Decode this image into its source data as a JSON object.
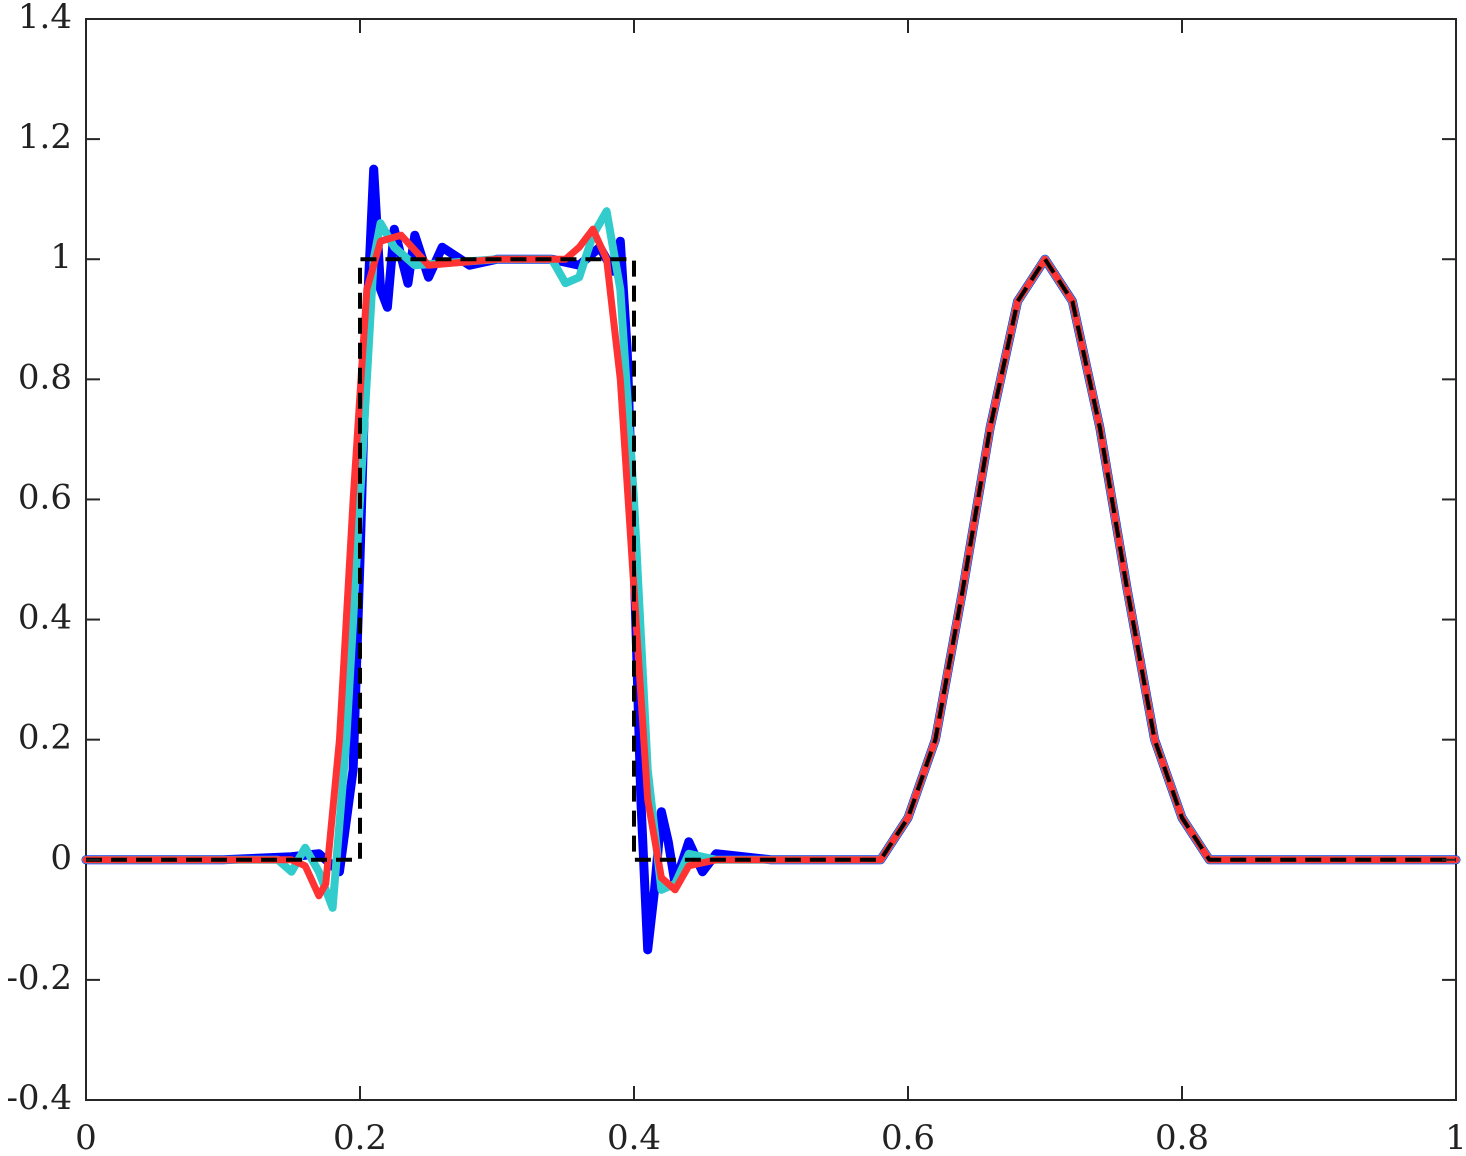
{
  "chart_data": {
    "type": "line",
    "xlim": [
      0,
      1
    ],
    "ylim": [
      -0.4,
      1.4
    ],
    "xticks": [
      0,
      0.2,
      0.4,
      0.6,
      0.8,
      1
    ],
    "yticks": [
      -0.4,
      -0.2,
      0,
      0.2,
      0.4,
      0.6,
      0.8,
      1,
      1.2,
      1.4
    ],
    "series": [
      {
        "color": "#0000ff",
        "width": 9,
        "dashed": false,
        "x": [
          0,
          0.1,
          0.15,
          0.17,
          0.185,
          0.195,
          0.2,
          0.205,
          0.21,
          0.215,
          0.22,
          0.225,
          0.235,
          0.24,
          0.25,
          0.26,
          0.28,
          0.3,
          0.34,
          0.36,
          0.375,
          0.385,
          0.39,
          0.395,
          0.4,
          0.405,
          0.41,
          0.415,
          0.42,
          0.425,
          0.43,
          0.44,
          0.45,
          0.46,
          0.5,
          0.58,
          0.6,
          0.62,
          0.64,
          0.66,
          0.68,
          0.7,
          0.72,
          0.74,
          0.76,
          0.78,
          0.8,
          0.82,
          1
        ],
        "values": [
          0,
          0,
          0.005,
          0.01,
          -0.02,
          0.15,
          0.5,
          0.9,
          1.15,
          0.95,
          0.92,
          1.05,
          0.96,
          1.04,
          0.97,
          1.02,
          0.99,
          1,
          1,
          0.99,
          1.02,
          0.98,
          1.03,
          0.85,
          0.5,
          0.1,
          -0.15,
          -0.05,
          0.08,
          0.03,
          -0.04,
          0.03,
          -0.02,
          0.01,
          0,
          0,
          0.07,
          0.2,
          0.45,
          0.72,
          0.93,
          1,
          0.93,
          0.72,
          0.45,
          0.2,
          0.07,
          0,
          0
        ]
      },
      {
        "color": "#33cccc",
        "width": 8,
        "dashed": false,
        "x": [
          0,
          0.14,
          0.15,
          0.16,
          0.17,
          0.18,
          0.19,
          0.2,
          0.21,
          0.215,
          0.225,
          0.24,
          0.3,
          0.34,
          0.35,
          0.36,
          0.37,
          0.38,
          0.39,
          0.4,
          0.41,
          0.42,
          0.43,
          0.44,
          0.46,
          0.58,
          0.6,
          0.62,
          0.64,
          0.66,
          0.68,
          0.7,
          0.72,
          0.74,
          0.76,
          0.78,
          0.8,
          0.82,
          1
        ],
        "values": [
          0,
          0,
          -0.02,
          0.02,
          -0.02,
          -0.08,
          0.2,
          0.6,
          1,
          1.06,
          1.02,
          0.99,
          1,
          1,
          0.96,
          0.97,
          1.04,
          1.08,
          0.95,
          0.6,
          0.15,
          -0.05,
          -0.04,
          0.01,
          0,
          0,
          0.07,
          0.2,
          0.45,
          0.72,
          0.93,
          1,
          0.93,
          0.72,
          0.45,
          0.2,
          0.07,
          0,
          0
        ]
      },
      {
        "color": "#ff3333",
        "width": 7,
        "dashed": false,
        "x": [
          0,
          0.15,
          0.16,
          0.17,
          0.175,
          0.185,
          0.195,
          0.205,
          0.215,
          0.23,
          0.25,
          0.3,
          0.35,
          0.36,
          0.37,
          0.38,
          0.39,
          0.4,
          0.41,
          0.42,
          0.43,
          0.44,
          0.46,
          0.58,
          0.6,
          0.62,
          0.64,
          0.66,
          0.68,
          0.7,
          0.72,
          0.74,
          0.76,
          0.78,
          0.8,
          0.82,
          1
        ],
        "values": [
          0,
          0,
          -0.01,
          -0.06,
          -0.04,
          0.2,
          0.6,
          0.95,
          1.03,
          1.04,
          0.99,
          1,
          1,
          1.02,
          1.05,
          1,
          0.8,
          0.45,
          0.1,
          -0.03,
          -0.05,
          -0.01,
          0,
          0,
          0.07,
          0.2,
          0.45,
          0.72,
          0.93,
          1,
          0.93,
          0.72,
          0.45,
          0.2,
          0.07,
          0,
          0
        ]
      },
      {
        "color": "#000000",
        "width": 4,
        "dashed": true,
        "x": [
          0,
          0.2,
          0.2,
          0.4,
          0.4,
          0.58,
          0.6,
          0.62,
          0.64,
          0.66,
          0.68,
          0.7,
          0.72,
          0.74,
          0.76,
          0.78,
          0.8,
          0.82,
          1
        ],
        "values": [
          0,
          0,
          1,
          1,
          0,
          0,
          0.07,
          0.2,
          0.45,
          0.72,
          0.93,
          1,
          0.93,
          0.72,
          0.45,
          0.2,
          0.07,
          0,
          0
        ]
      }
    ]
  }
}
